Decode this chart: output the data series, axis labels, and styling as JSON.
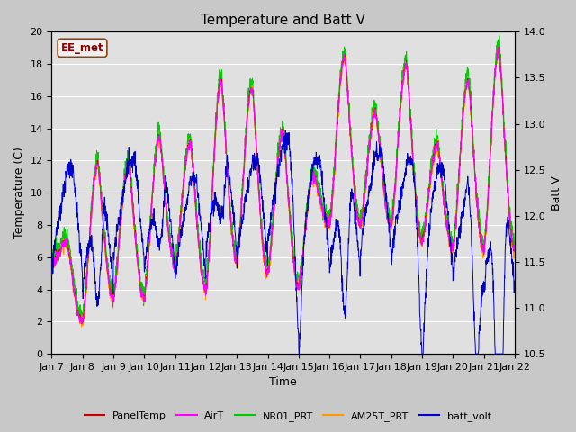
{
  "title": "Temperature and Batt V",
  "xlabel": "Time",
  "ylabel_left": "Temperature (C)",
  "ylabel_right": "Batt V",
  "annotation": "EE_met",
  "ylim_left": [
    0,
    20
  ],
  "ylim_right": [
    10.5,
    14.0
  ],
  "x_tick_labels": [
    "Jan 7",
    "Jan 8",
    "Jan 9",
    "Jan 10",
    "Jan 11",
    "Jan 12",
    "Jan 13",
    "Jan 14",
    "Jan 15",
    "Jan 16",
    "Jan 17",
    "Jan 18",
    "Jan 19",
    "Jan 20",
    "Jan 21",
    "Jan 22"
  ],
  "plot_bg_color": "#e0e0e0",
  "fig_bg_color": "#c8c8c8",
  "colors": {
    "PanelTemp": "#cc0000",
    "AirT": "#ff00ff",
    "NR01_PRT": "#00cc00",
    "AM25T_PRT": "#ff9900",
    "batt_volt": "#0000cc"
  },
  "left_yticks": [
    0,
    2,
    4,
    6,
    8,
    10,
    12,
    14,
    16,
    18,
    20
  ],
  "right_yticks": [
    10.5,
    11.0,
    11.5,
    12.0,
    12.5,
    13.0,
    13.5,
    14.0
  ],
  "title_fontsize": 11,
  "label_fontsize": 9,
  "tick_fontsize": 8,
  "linewidth": 0.7
}
